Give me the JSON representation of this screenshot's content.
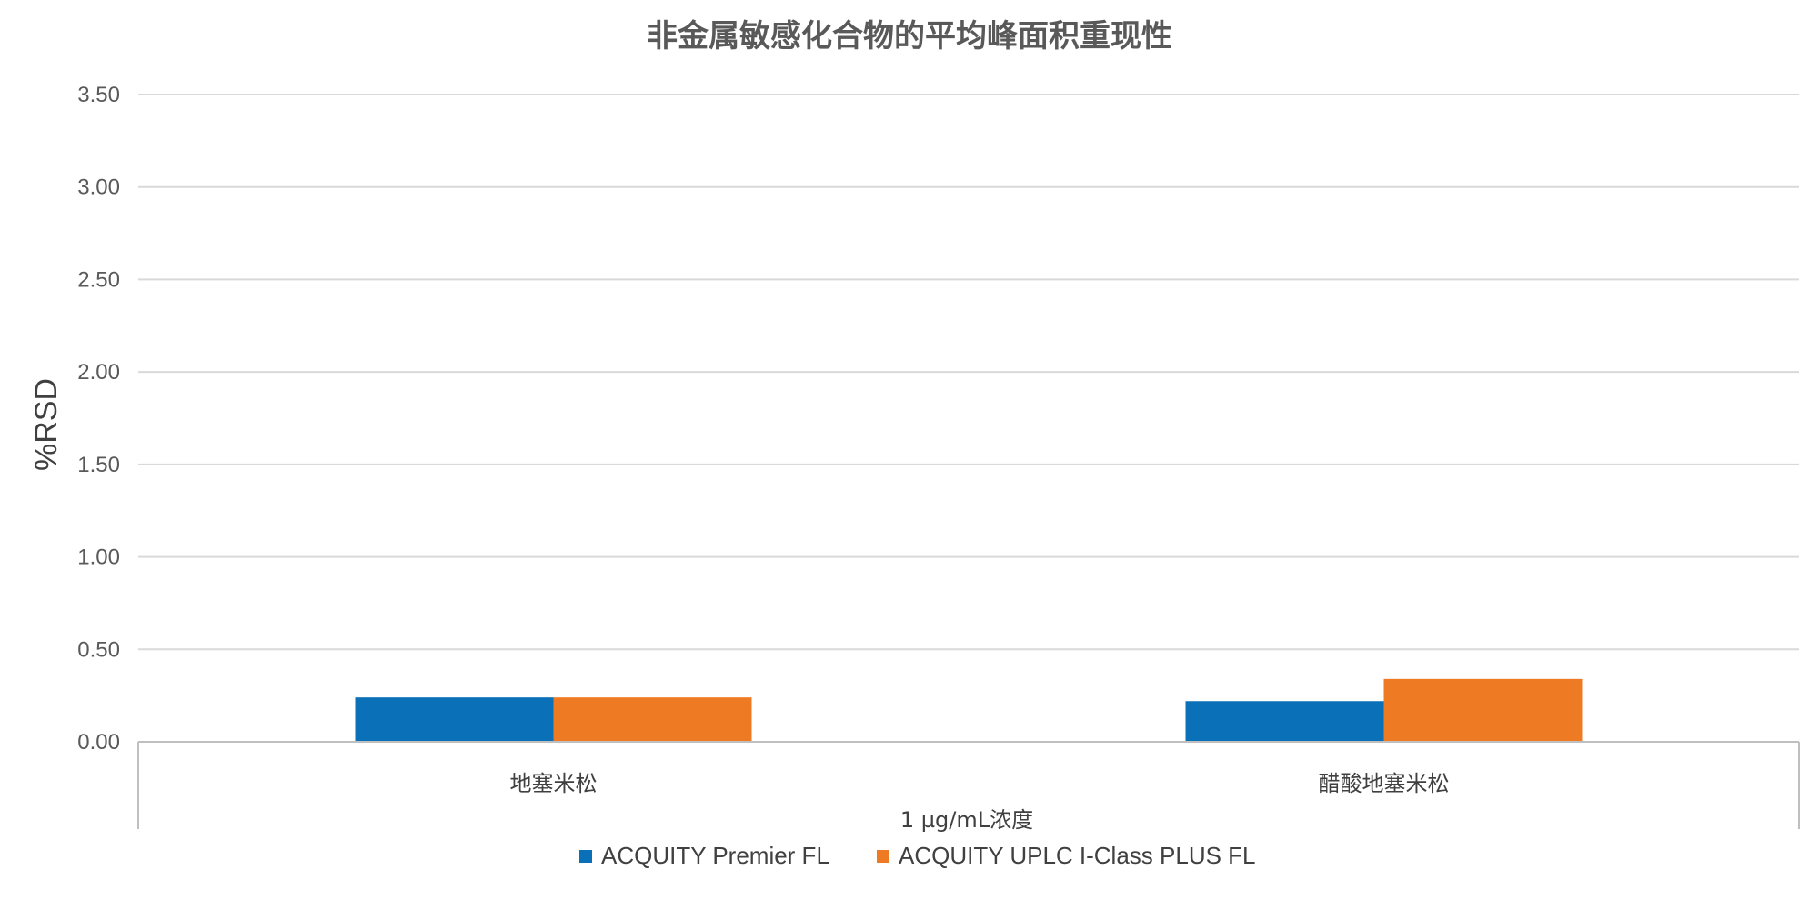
{
  "chart_data": {
    "type": "bar",
    "title": "非金属敏感化合物的平均峰面积重现性",
    "xlabel": "1 µg/mL浓度",
    "ylabel": "%RSD",
    "ylim": [
      0,
      3.5
    ],
    "y_ticks": [
      "0.00",
      "0.50",
      "1.00",
      "1.50",
      "2.00",
      "2.50",
      "3.00",
      "3.50"
    ],
    "categories": [
      "地塞米松",
      "醋酸地塞米松"
    ],
    "series": [
      {
        "name": "ACQUITY Premier FL",
        "color": "#0A70B8",
        "values": [
          0.24,
          0.22
        ]
      },
      {
        "name": "ACQUITY UPLC I-Class PLUS FL",
        "color": "#EE7A24",
        "values": [
          0.24,
          0.34
        ]
      }
    ],
    "grid": true,
    "legend": "bottom-center"
  },
  "colors": {
    "gridline": "#d9d9d9",
    "axis_line": "#bfbfbf"
  }
}
